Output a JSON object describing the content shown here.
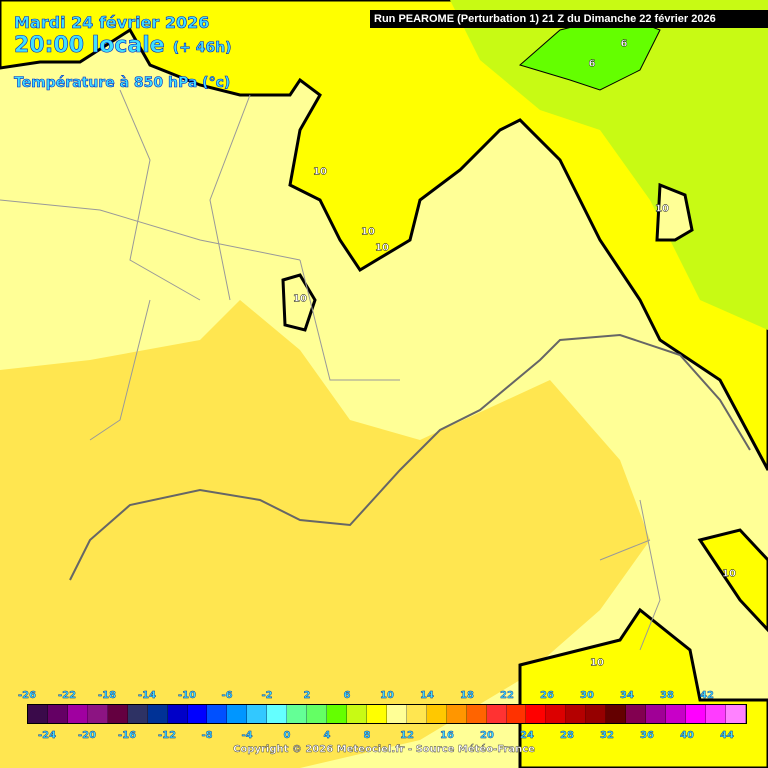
{
  "header": {
    "date": "Mardi 24 février 2026",
    "time": "20:00 locale",
    "lead": "(+ 46h)",
    "parameter": "Température à 850 hPa (°c)",
    "run": "Run PEAROME (Perturbation 1) 21 Z du Dimanche 22 février 2026"
  },
  "contour_labels": [
    "10",
    "10",
    "10",
    "10",
    "10",
    "10",
    "10",
    "6",
    "6"
  ],
  "colorbar": {
    "top_labels": [
      "-26",
      "-22",
      "-18",
      "-14",
      "-10",
      "-6",
      "-2",
      "2",
      "6",
      "10",
      "14",
      "18",
      "22",
      "26",
      "30",
      "34",
      "38",
      "42"
    ],
    "bottom_labels": [
      "-24",
      "-20",
      "-16",
      "-12",
      "-8",
      "-4",
      "0",
      "4",
      "8",
      "12",
      "16",
      "20",
      "24",
      "28",
      "32",
      "36",
      "40",
      "44"
    ],
    "colors": [
      "#3a0a4a",
      "#640064",
      "#a000a0",
      "#8c1482",
      "#640040",
      "#2e3264",
      "#003296",
      "#0000c8",
      "#0000ff",
      "#0050ff",
      "#0096ff",
      "#32c8ff",
      "#64ffff",
      "#64ff96",
      "#64ff64",
      "#64ff00",
      "#c8fa14",
      "#ffff00",
      "#ffff96",
      "#ffe650",
      "#ffc800",
      "#ff9600",
      "#ff6400",
      "#ff3232",
      "#ff3200",
      "#ff0000",
      "#dc0000",
      "#b40000",
      "#960000",
      "#640000",
      "#820050",
      "#a00096",
      "#c800c8",
      "#ff00ff",
      "#ff3cff",
      "#ff82ff"
    ]
  },
  "copyright": "Copyright © 2026 Meteociel.fr - Source Météo-France"
}
